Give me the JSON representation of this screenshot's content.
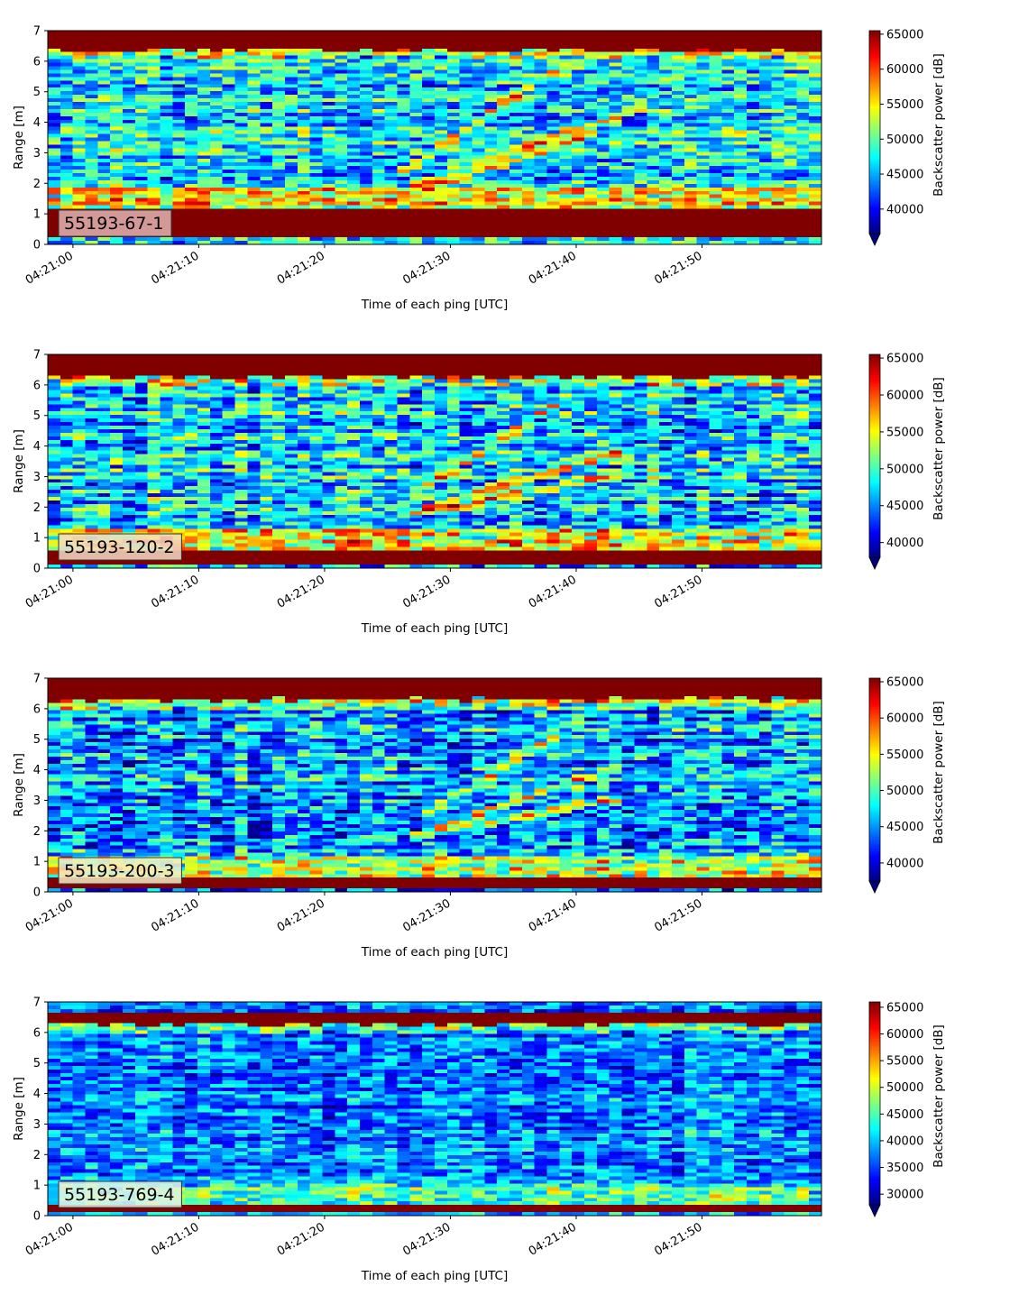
{
  "figure": {
    "x_tick_labels": [
      "04:21:00",
      "04:21:10",
      "04:21:20",
      "04:21:30",
      "04:21:40",
      "04:21:50"
    ],
    "xlabel": "Time of each ping [UTC]",
    "ylabel": "Range [m]",
    "cbar_label": "Backscatter power [dB]"
  },
  "chart_data": [
    {
      "type": "heatmap",
      "label": "55193-67-1",
      "label_box_color": "#e2b4b4",
      "x_range_s": [
        -2,
        59.5
      ],
      "ylim": [
        0,
        7
      ],
      "y_ticks": [
        0,
        1,
        2,
        3,
        4,
        5,
        6,
        7
      ],
      "clim": [
        36500,
        65500
      ],
      "cbar_ticks": [
        40000,
        45000,
        50000,
        55000,
        60000,
        65000
      ],
      "colormap": "jet",
      "features": {
        "surface_band_m": [
          6.35,
          7.0
        ],
        "bottom_band_m": [
          0.25,
          1.15
        ],
        "bright_near_bottom_m": [
          1.2,
          1.9
        ],
        "rising_tracks": [
          {
            "t_start_s": 26,
            "r_start_m": 2.3,
            "t_end_s": 39,
            "r_end_m": 5.9
          },
          {
            "t_start_s": 27,
            "r_start_m": 1.9,
            "t_end_s": 46,
            "r_end_m": 4.6
          },
          {
            "t_start_s": 28,
            "r_start_m": 1.8,
            "t_end_s": 42,
            "r_end_m": 3.7
          }
        ],
        "background_mean": 47000
      }
    },
    {
      "type": "heatmap",
      "label": "55193-120-2",
      "label_box_color": "#f2dcc6",
      "x_range_s": [
        -2,
        59.5
      ],
      "ylim": [
        0,
        7
      ],
      "y_ticks": [
        0,
        1,
        2,
        3,
        4,
        5,
        6,
        7
      ],
      "clim": [
        38000,
        65500
      ],
      "cbar_ticks": [
        40000,
        45000,
        50000,
        55000,
        60000,
        65000
      ],
      "colormap": "jet",
      "features": {
        "surface_band_m": [
          6.25,
          6.95
        ],
        "bottom_band_m": [
          0.15,
          0.55
        ],
        "bright_near_bottom_m": [
          0.55,
          1.3
        ],
        "rising_tracks": [
          {
            "t_start_s": 27,
            "r_start_m": 2.4,
            "t_end_s": 39,
            "r_end_m": 5.5
          },
          {
            "t_start_s": 26,
            "r_start_m": 1.7,
            "t_end_s": 44,
            "r_end_m": 3.9
          },
          {
            "t_start_s": 29,
            "r_start_m": 1.9,
            "t_end_s": 44,
            "r_end_m": 3.1
          }
        ],
        "background_mean": 47000
      }
    },
    {
      "type": "heatmap",
      "label": "55193-200-3",
      "label_box_color": "#f4ecc4",
      "x_range_s": [
        -2,
        59.5
      ],
      "ylim": [
        0,
        7
      ],
      "y_ticks": [
        0,
        1,
        2,
        3,
        4,
        5,
        6,
        7
      ],
      "clim": [
        37500,
        65500
      ],
      "cbar_ticks": [
        40000,
        45000,
        50000,
        55000,
        60000,
        65000
      ],
      "colormap": "jet",
      "features": {
        "surface_band_m": [
          6.3,
          6.95
        ],
        "bottom_band_m": [
          0.1,
          0.45
        ],
        "bright_near_bottom_m": [
          0.45,
          1.2
        ],
        "rising_tracks": [
          {
            "t_start_s": 28,
            "r_start_m": 2.5,
            "t_end_s": 39,
            "r_end_m": 5.3
          },
          {
            "t_start_s": 27,
            "r_start_m": 1.8,
            "t_end_s": 44,
            "r_end_m": 4.2
          },
          {
            "t_start_s": 29,
            "r_start_m": 2.0,
            "t_end_s": 44,
            "r_end_m": 3.1
          }
        ],
        "background_mean": 45500
      }
    },
    {
      "type": "heatmap",
      "label": "55193-769-4",
      "label_box_color": "#e0f2e8",
      "x_range_s": [
        -2,
        59.5
      ],
      "ylim": [
        0,
        7
      ],
      "y_ticks": [
        0,
        1,
        2,
        3,
        4,
        5,
        6,
        7
      ],
      "clim": [
        28000,
        66000
      ],
      "cbar_ticks": [
        30000,
        35000,
        40000,
        45000,
        50000,
        55000,
        60000,
        65000
      ],
      "colormap": "jet",
      "features": {
        "surface_band_m": [
          6.25,
          6.6
        ],
        "bottom_band_m": [
          0.1,
          0.3
        ],
        "bright_near_bottom_m": [
          0.3,
          1.0
        ],
        "rising_tracks": [],
        "background_mean": 37500
      }
    }
  ]
}
